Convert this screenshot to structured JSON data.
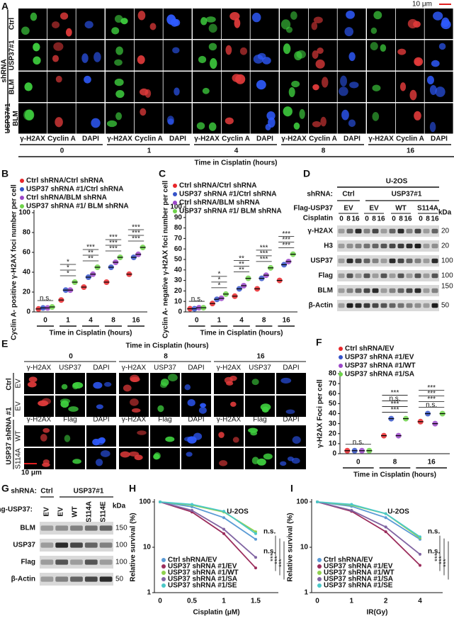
{
  "panel_a": {
    "label": "A",
    "scale_bar": "10 μm",
    "group": "shRNA",
    "rows": [
      [
        "Ctrl"
      ],
      [
        "USP37#1"
      ],
      [
        "BLM"
      ],
      [
        "USP37#1",
        "BLM"
      ]
    ],
    "channels": [
      "γ-H2AX",
      "Cyclin A",
      "DAPI"
    ],
    "times": [
      "0",
      "1",
      "4",
      "8",
      "16"
    ],
    "xlabel": "Time in Cisplatin (hours)"
  },
  "panel_d": {
    "label": "D",
    "title": "U-2OS",
    "shrna_label": "shRNA:",
    "shrna_groups": [
      "Ctrl",
      "USP37#1"
    ],
    "flag_label": "Flag-USP37",
    "flag_groups": [
      "EV",
      "EV",
      "WT",
      "S114A"
    ],
    "treatment_label": "Cisplatin",
    "doses": [
      "0",
      "8",
      "16"
    ],
    "kda": "kDa",
    "rows": [
      {
        "name": "γ-H2AX",
        "marker": "20"
      },
      {
        "name": "H3",
        "marker": "20"
      },
      {
        "name": "USP37",
        "marker": "100"
      },
      {
        "name": "Flag",
        "marker": "100"
      },
      {
        "name": "BLM",
        "marker": "150"
      },
      {
        "name": "β-Actin",
        "marker": "50"
      }
    ]
  },
  "panel_e": {
    "label": "E",
    "title": "Time in Cisplatin (hours)",
    "times": [
      "0",
      "8",
      "16"
    ],
    "channels_top": [
      "γ-H2AX",
      "USP37",
      "DAPI"
    ],
    "channels_bottom": [
      "γ-H2AX",
      "Flag",
      "DAPI"
    ],
    "groups": [
      "Ctrl",
      "USP37 shRNA #1"
    ],
    "rows": [
      "EV",
      "EV",
      "WT",
      "S114A"
    ],
    "scale_bar": "10 μm"
  },
  "panel_g": {
    "label": "G",
    "shrna_label": "shRNA:",
    "shrna_groups": [
      "Ctrl",
      "USP37#1"
    ],
    "flag_label": "Flag-USP37:",
    "lanes": [
      "EV",
      "EV",
      "WT",
      "S114A",
      "S114E"
    ],
    "kda": "kDa",
    "rows": [
      {
        "name": "BLM",
        "marker": "150"
      },
      {
        "name": "USP37",
        "marker": "100"
      },
      {
        "name": "Flag",
        "marker": "100"
      },
      {
        "name": "β-Actin",
        "marker": "50"
      }
    ]
  },
  "chart_data": [
    {
      "type": "strip",
      "panel_label": "B",
      "ylabel": "Cyclin A- positive γ-H2AX foci number per cell",
      "xlabel": "Time in Cisplatin (hours)",
      "categories": [
        "0",
        "1",
        "4",
        "8",
        "16"
      ],
      "ylim": [
        0,
        100
      ],
      "yticks": [
        0,
        20,
        40,
        60,
        80,
        100
      ],
      "series": [
        {
          "name": "Ctrl shRNA/Ctrl shRNA",
          "color": "#e8262a",
          "values": [
            3,
            12,
            25,
            30,
            38
          ]
        },
        {
          "name": "USP37 shRNA #1/Ctrl shRNA",
          "color": "#3553c9",
          "values": [
            4,
            22,
            35,
            45,
            55
          ]
        },
        {
          "name": "Ctrl shRNA/BLM shRNA",
          "color": "#9b46c8",
          "values": [
            4,
            22,
            38,
            50,
            58
          ]
        },
        {
          "name": "USP37 shRNA #1/ BLM shRNA",
          "color": "#6fd44a",
          "values": [
            5,
            30,
            45,
            55,
            65
          ]
        }
      ],
      "annotations": [
        [
          "n.s."
        ],
        [
          "*",
          "*",
          "*"
        ],
        [
          "**",
          "**",
          "***"
        ],
        [
          "***",
          "***",
          "***"
        ],
        [
          "***",
          "***",
          "***"
        ]
      ]
    },
    {
      "type": "strip",
      "panel_label": "C",
      "ylabel": "Cyclin A- negative γ-H2AX foci number per cell",
      "xlabel": "Time in Cisplatin (hours)",
      "categories": [
        "0",
        "1",
        "4",
        "8",
        "16"
      ],
      "ylim": [
        0,
        100
      ],
      "yticks": [
        0,
        10,
        20,
        30,
        40,
        50,
        60,
        70,
        80,
        90,
        100
      ],
      "series": [
        {
          "name": "Ctrl shRNA/Ctrl shRNA",
          "color": "#e8262a",
          "values": [
            3,
            8,
            15,
            22,
            30
          ]
        },
        {
          "name": "USP37 shRNA #1/Ctrl shRNA",
          "color": "#3553c9",
          "values": [
            3,
            12,
            22,
            32,
            45
          ]
        },
        {
          "name": "Ctrl shRNA/BLM shRNA",
          "color": "#9b46c8",
          "values": [
            4,
            13,
            25,
            35,
            48
          ]
        },
        {
          "name": "USP37 shRNA #1/ BLM shRNA",
          "color": "#6fd44a",
          "values": [
            4,
            17,
            32,
            42,
            55
          ]
        }
      ],
      "annotations": [
        [
          "n.s."
        ],
        [
          "*",
          "*",
          "*"
        ],
        [
          "**",
          "**",
          "**"
        ],
        [
          "***",
          "***",
          "***"
        ],
        [
          "***",
          "***",
          "***"
        ]
      ]
    },
    {
      "type": "strip",
      "panel_label": "F",
      "ylabel": "γ-H2AX Foci per cell",
      "xlabel": "Time in Cisplatin (hours)",
      "categories": [
        "0",
        "8",
        "16"
      ],
      "ylim": [
        0,
        80
      ],
      "yticks": [
        0,
        10,
        20,
        30,
        40,
        50,
        60,
        70,
        80
      ],
      "series": [
        {
          "name": "Ctrl shRNA/EV",
          "color": "#e8262a",
          "values": [
            3,
            18,
            32
          ]
        },
        {
          "name": "USP37 shRNA #1/EV",
          "color": "#3553c9",
          "values": [
            3,
            35,
            40
          ]
        },
        {
          "name": "USP37 shRNA #1/WT",
          "color": "#9b46c8",
          "values": [
            3,
            18,
            30
          ]
        },
        {
          "name": "USP37 shRNA #1/SA",
          "color": "#6fd44a",
          "values": [
            3,
            35,
            40
          ]
        }
      ],
      "annotations": [
        [
          "n.s."
        ],
        [
          "***",
          "***",
          "n.s.",
          "***"
        ],
        [
          "n.s.",
          "***",
          "***",
          "***"
        ]
      ]
    },
    {
      "type": "line",
      "panel_label": "H",
      "title": "U-2OS",
      "ylabel": "Relative survival (%)",
      "xlabel": "Cisplatin (μM)",
      "categories": [
        "0",
        "0.5",
        "1",
        "1.5"
      ],
      "log": true,
      "ylim": [
        1,
        100
      ],
      "yticks": [
        1,
        10,
        100
      ],
      "series": [
        {
          "name": "Ctrl shRNA/EV",
          "color": "#5b9bd5",
          "values": [
            100,
            78,
            45,
            15
          ]
        },
        {
          "name": "USP37 shRNA #1/EV",
          "color": "#9b2d5c",
          "values": [
            100,
            60,
            20,
            3.5
          ]
        },
        {
          "name": "USP37 shRNA #1/WT",
          "color": "#8fd14f",
          "values": [
            100,
            85,
            60,
            22
          ]
        },
        {
          "name": "USP37 shRNA #1/SA",
          "color": "#8064a2",
          "values": [
            100,
            65,
            25,
            6
          ]
        },
        {
          "name": "USP37 shRNA #1/SE",
          "color": "#4bc8c8",
          "values": [
            100,
            88,
            62,
            20
          ]
        }
      ],
      "annotations": [
        "n.s.",
        "n.s.",
        "***",
        "***",
        "***"
      ]
    },
    {
      "type": "line",
      "panel_label": "I",
      "title": "U-2OS",
      "ylabel": "Relative survival (%)",
      "xlabel": "IR(Gy)",
      "categories": [
        "0",
        "1",
        "2",
        "4"
      ],
      "log": true,
      "ylim": [
        1,
        100
      ],
      "yticks": [
        1,
        10,
        100
      ],
      "series": [
        {
          "name": "Ctrl shRNA/EV",
          "color": "#5b9bd5",
          "values": [
            100,
            80,
            45,
            15
          ]
        },
        {
          "name": "USP37 shRNA #1/EV",
          "color": "#9b2d5c",
          "values": [
            100,
            62,
            22,
            4
          ]
        },
        {
          "name": "USP37 shRNA #1/WT",
          "color": "#8fd14f",
          "values": [
            100,
            85,
            55,
            16
          ]
        },
        {
          "name": "USP37 shRNA #1/SA",
          "color": "#8064a2",
          "values": [
            100,
            65,
            28,
            7
          ]
        },
        {
          "name": "USP37 shRNA #1/SE",
          "color": "#4bc8c8",
          "values": [
            100,
            88,
            55,
            17
          ]
        }
      ],
      "annotations": [
        "n.s.",
        "n.s.",
        "***",
        "***",
        "***"
      ]
    }
  ]
}
